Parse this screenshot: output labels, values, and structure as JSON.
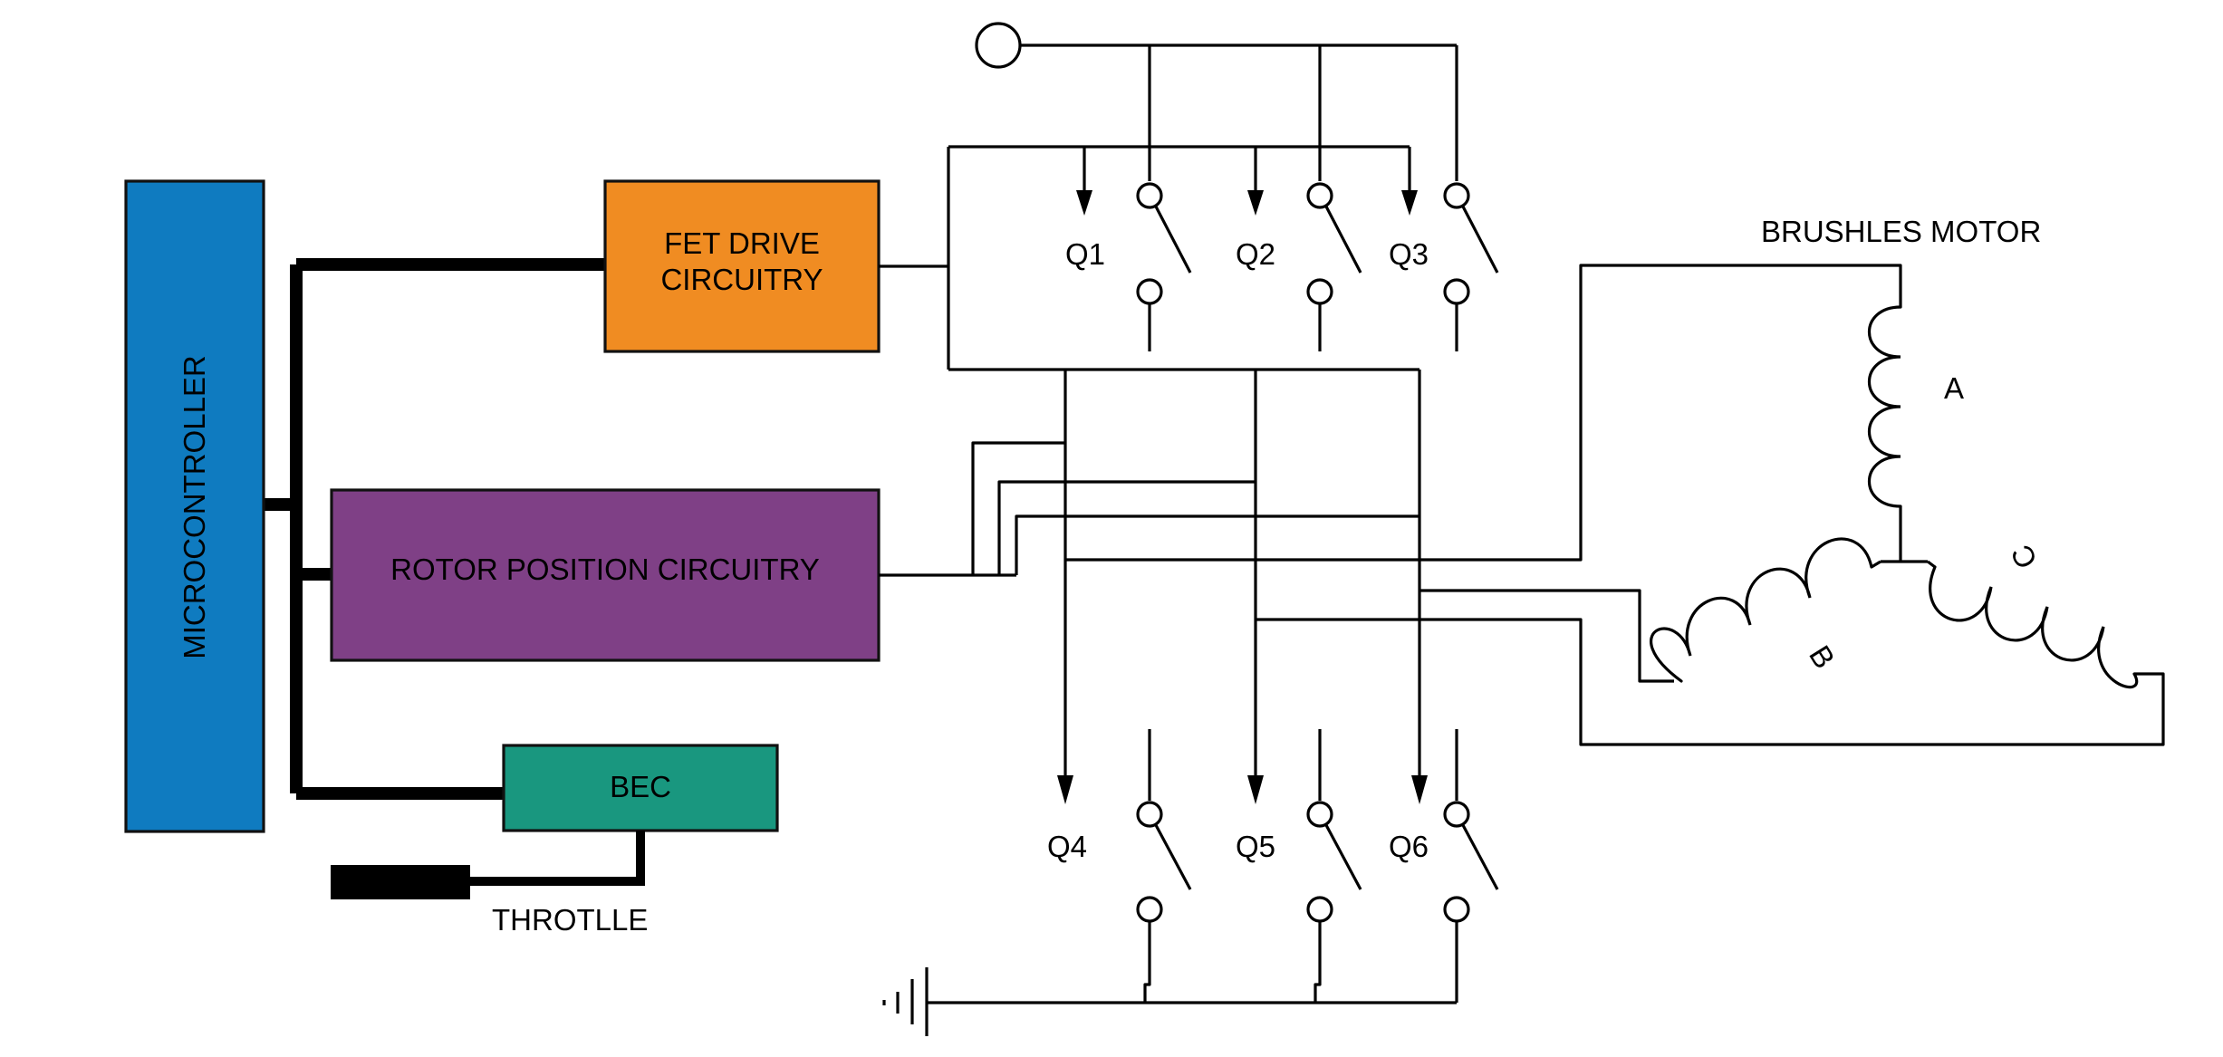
{
  "blocks": {
    "microcontroller": {
      "label": "MICROCONTROLLER",
      "color": "#0F7BC0"
    },
    "fet_drive": {
      "label_line1": "FET DRIVE",
      "label_line2": "CIRCUITRY",
      "color": "#F08C22"
    },
    "rotor_position": {
      "label": "ROTOR POSITION CIRCUITRY",
      "color": "#7F4086"
    },
    "bec": {
      "label": "BEC",
      "color": "#19977F"
    }
  },
  "throttle": {
    "label": "THROTLLE"
  },
  "motor": {
    "title": "BRUSHLES MOTOR",
    "coils": [
      {
        "label": "A"
      },
      {
        "label": "B"
      },
      {
        "label": "C"
      }
    ]
  },
  "switches": {
    "high_side": [
      {
        "label": "Q1"
      },
      {
        "label": "Q2"
      },
      {
        "label": "Q3"
      }
    ],
    "low_side": [
      {
        "label": "Q4"
      },
      {
        "label": "Q5"
      },
      {
        "label": "Q6"
      }
    ]
  },
  "supply": {
    "name": "supply-terminal"
  },
  "ground": {
    "name": "ground"
  }
}
